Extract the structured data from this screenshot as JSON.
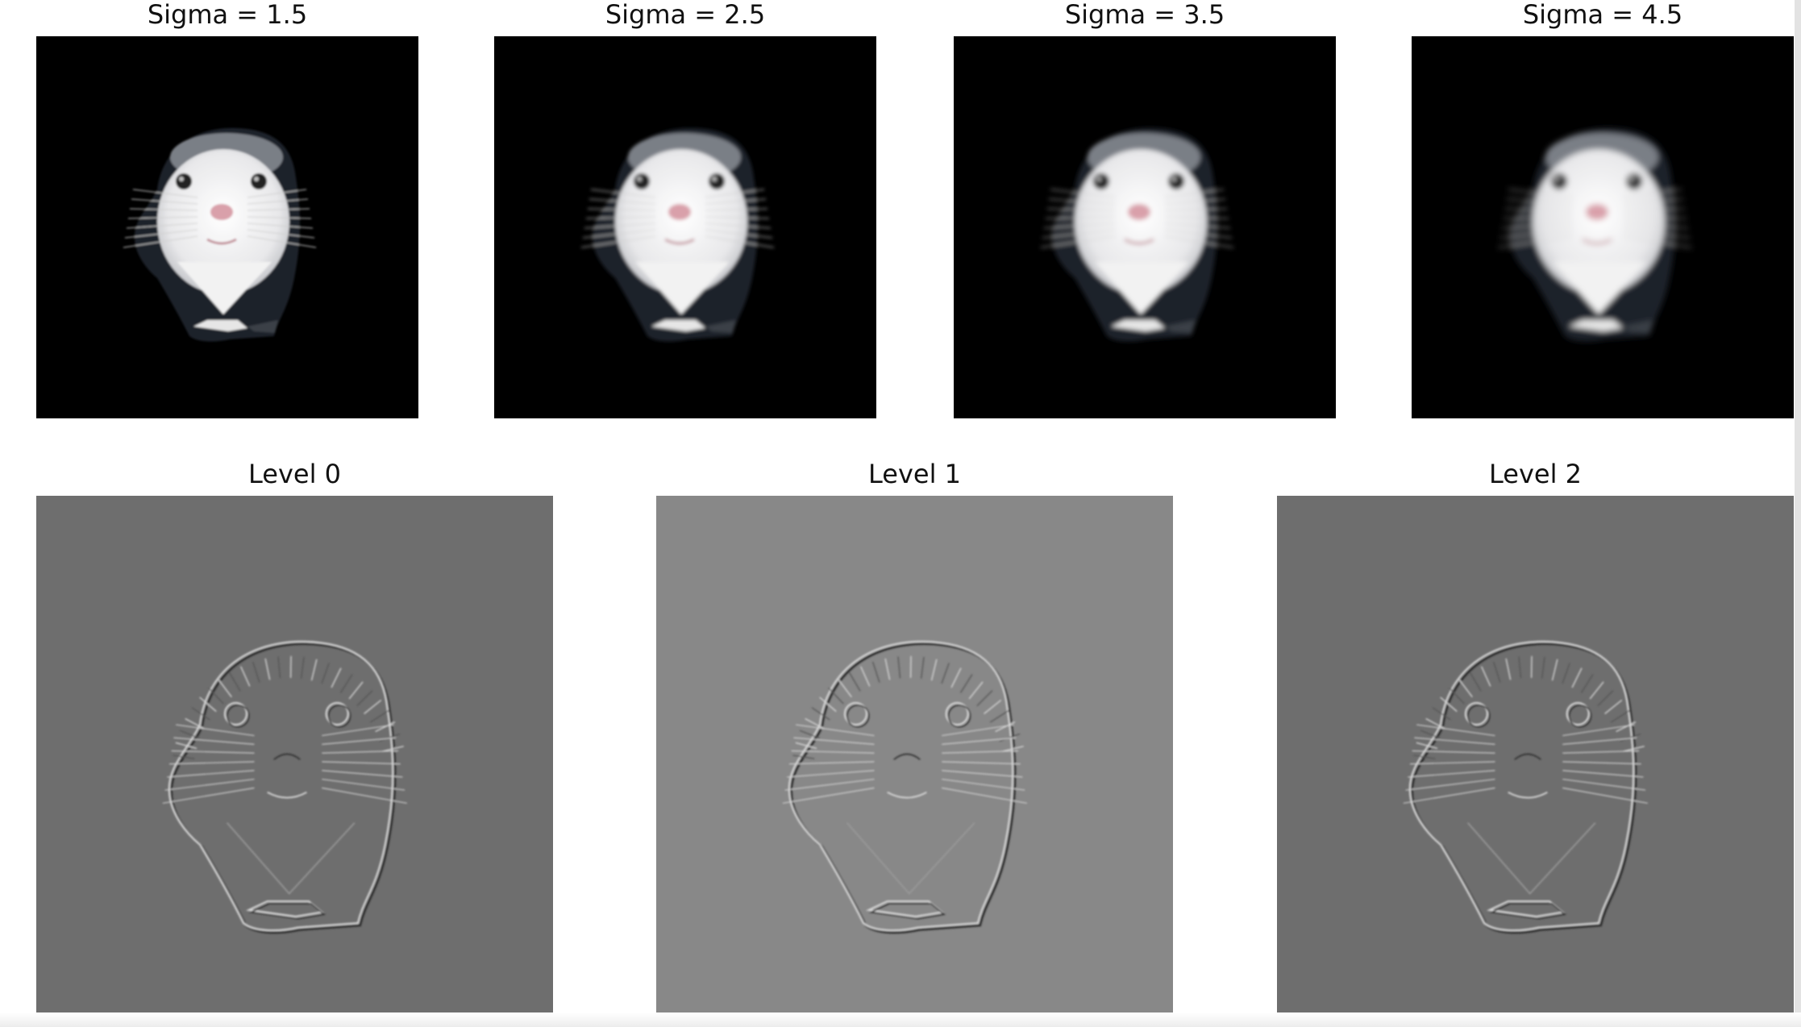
{
  "top_row": [
    {
      "title": "Sigma = 1.5",
      "background": "#000000"
    },
    {
      "title": "Sigma = 2.5",
      "background": "#000000"
    },
    {
      "title": "Sigma = 3.5",
      "background": "#000000"
    },
    {
      "title": "Sigma = 4.5",
      "background": "#000000"
    }
  ],
  "bottom_row": [
    {
      "title": "Level 0",
      "background": "#6e6e6e"
    },
    {
      "title": "Level 1",
      "background": "#888888"
    },
    {
      "title": "Level 2",
      "background": "#6e6e6e"
    }
  ],
  "subject": "hamster-face"
}
